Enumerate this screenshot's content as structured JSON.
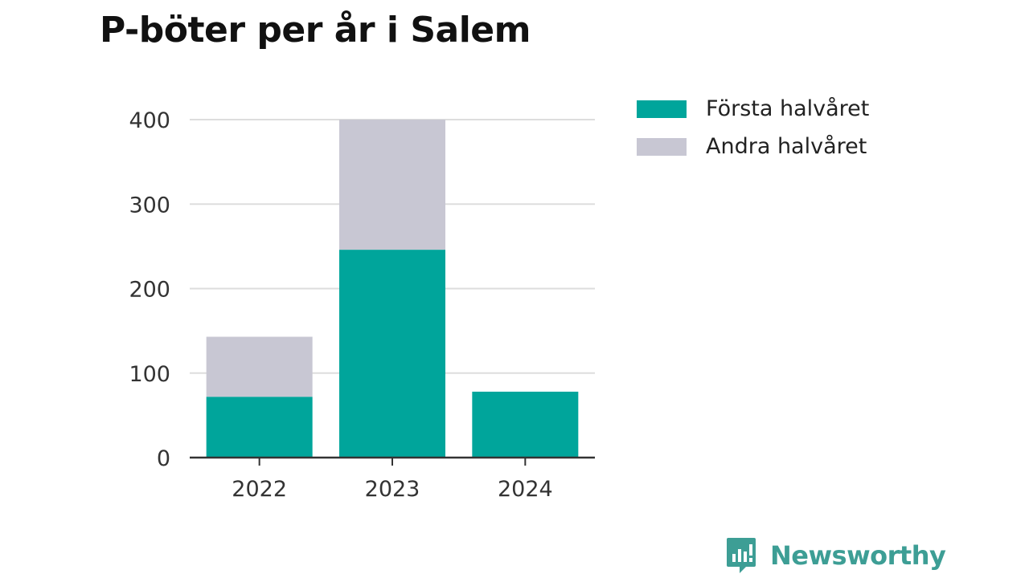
{
  "title": "P-böter per år i Salem",
  "colors": {
    "first_half": "#00a59b",
    "second_half": "#c8c7d3",
    "grid": "#dddddd",
    "axis": "#333333",
    "brand": "#3d9e95"
  },
  "legend": [
    {
      "label": "Första halvåret",
      "color": "#00a59b"
    },
    {
      "label": "Andra halvåret",
      "color": "#c8c7d3"
    }
  ],
  "chart_data": {
    "type": "bar",
    "stacked": true,
    "title": "P-böter per år i Salem",
    "categories": [
      "2022",
      "2023",
      "2024"
    ],
    "series": [
      {
        "name": "Första halvåret",
        "color": "#00a59b",
        "values": [
          72,
          246,
          78
        ]
      },
      {
        "name": "Andra halvåret",
        "color": "#c8c7d3",
        "values": [
          71,
          154,
          0
        ]
      }
    ],
    "ylim": [
      0,
      400
    ],
    "yticks": [
      "0",
      "100",
      "200",
      "300",
      "400"
    ],
    "grid": true,
    "legend_position": "right"
  },
  "brand": {
    "name": "Newsworthy",
    "icon": "newsworthy-logo-icon"
  }
}
